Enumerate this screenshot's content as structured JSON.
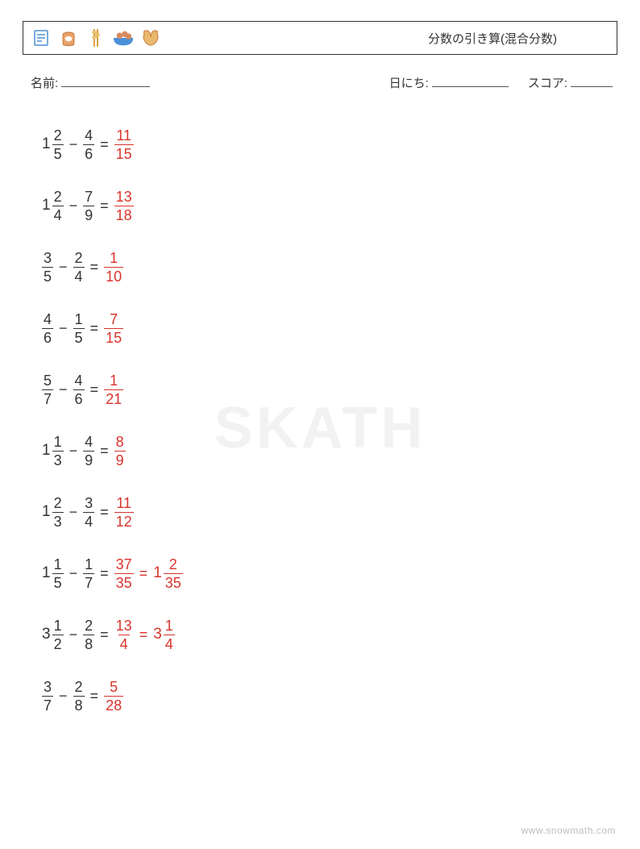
{
  "header": {
    "title": "分数の引き算(混合分数)",
    "icons": [
      "doc-icon",
      "flour-bag-icon",
      "wheat-icon",
      "bowl-icon",
      "pretzel-icon"
    ]
  },
  "meta": {
    "name_label": "名前:",
    "date_label": "日にち:",
    "score_label": "スコア:",
    "name_blank_width": 110,
    "date_blank_width": 95,
    "score_blank_width": 52
  },
  "colors": {
    "text": "#333333",
    "answer": "#d8342b",
    "border": "#333333",
    "background": "#ffffff",
    "watermark": "rgba(0,0,0,0.05)",
    "footer": "#bdbdbd"
  },
  "typography": {
    "body_fontsize": 18,
    "title_fontsize": 15,
    "meta_fontsize": 15,
    "watermark_fontsize": 72
  },
  "watermark_text": "SKATH",
  "footer_text": "www.snowmath.com",
  "problems": [
    {
      "a": {
        "whole": "1",
        "num": "2",
        "den": "5"
      },
      "op": "−",
      "b": {
        "whole": "",
        "num": "4",
        "den": "6"
      },
      "answers": [
        {
          "whole": "",
          "num": "11",
          "den": "15"
        }
      ]
    },
    {
      "a": {
        "whole": "1",
        "num": "2",
        "den": "4"
      },
      "op": "−",
      "b": {
        "whole": "",
        "num": "7",
        "den": "9"
      },
      "answers": [
        {
          "whole": "",
          "num": "13",
          "den": "18"
        }
      ]
    },
    {
      "a": {
        "whole": "",
        "num": "3",
        "den": "5"
      },
      "op": "−",
      "b": {
        "whole": "",
        "num": "2",
        "den": "4"
      },
      "answers": [
        {
          "whole": "",
          "num": "1",
          "den": "10"
        }
      ]
    },
    {
      "a": {
        "whole": "",
        "num": "4",
        "den": "6"
      },
      "op": "−",
      "b": {
        "whole": "",
        "num": "1",
        "den": "5"
      },
      "answers": [
        {
          "whole": "",
          "num": "7",
          "den": "15"
        }
      ]
    },
    {
      "a": {
        "whole": "",
        "num": "5",
        "den": "7"
      },
      "op": "−",
      "b": {
        "whole": "",
        "num": "4",
        "den": "6"
      },
      "answers": [
        {
          "whole": "",
          "num": "1",
          "den": "21"
        }
      ]
    },
    {
      "a": {
        "whole": "1",
        "num": "1",
        "den": "3"
      },
      "op": "−",
      "b": {
        "whole": "",
        "num": "4",
        "den": "9"
      },
      "answers": [
        {
          "whole": "",
          "num": "8",
          "den": "9"
        }
      ]
    },
    {
      "a": {
        "whole": "1",
        "num": "2",
        "den": "3"
      },
      "op": "−",
      "b": {
        "whole": "",
        "num": "3",
        "den": "4"
      },
      "answers": [
        {
          "whole": "",
          "num": "11",
          "den": "12"
        }
      ]
    },
    {
      "a": {
        "whole": "1",
        "num": "1",
        "den": "5"
      },
      "op": "−",
      "b": {
        "whole": "",
        "num": "1",
        "den": "7"
      },
      "answers": [
        {
          "whole": "",
          "num": "37",
          "den": "35"
        },
        {
          "whole": "1",
          "num": "2",
          "den": "35"
        }
      ]
    },
    {
      "a": {
        "whole": "3",
        "num": "1",
        "den": "2"
      },
      "op": "−",
      "b": {
        "whole": "",
        "num": "2",
        "den": "8"
      },
      "answers": [
        {
          "whole": "",
          "num": "13",
          "den": "4"
        },
        {
          "whole": "3",
          "num": "1",
          "den": "4"
        }
      ]
    },
    {
      "a": {
        "whole": "",
        "num": "3",
        "den": "7"
      },
      "op": "−",
      "b": {
        "whole": "",
        "num": "2",
        "den": "8"
      },
      "answers": [
        {
          "whole": "",
          "num": "5",
          "den": "28"
        }
      ]
    }
  ]
}
